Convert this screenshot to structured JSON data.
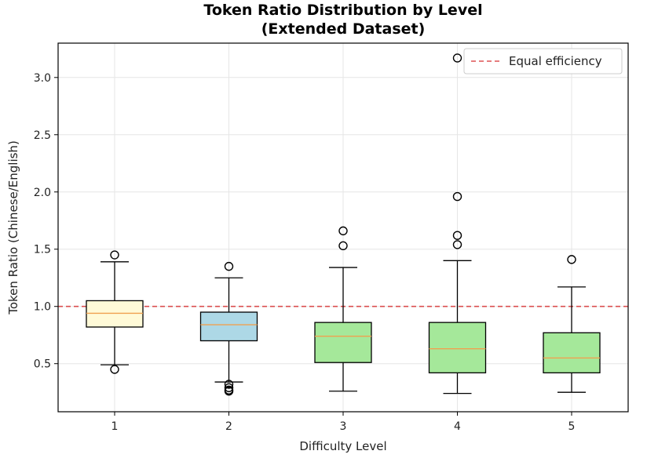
{
  "chart_data": {
    "type": "box",
    "title": "Token Ratio Distribution by Level",
    "subtitle": "(Extended Dataset)",
    "xlabel": "Difficulty Level",
    "ylabel": "Token Ratio (Chinese/English)",
    "categories": [
      "1",
      "2",
      "3",
      "4",
      "5"
    ],
    "ylim": [
      0.08,
      3.3
    ],
    "yticks": [
      0.5,
      1.0,
      1.5,
      2.0,
      2.5,
      3.0
    ],
    "ytick_labels": [
      "0.5",
      "1.0",
      "1.5",
      "2.0",
      "2.5",
      "3.0"
    ],
    "grid": true,
    "reference_line": {
      "value": 1.0,
      "label": "Equal efficiency",
      "color": "#d62728",
      "style": "dashed"
    },
    "legend_position": "top-right",
    "median_color": "#f0a050",
    "boxes": [
      {
        "category": "1",
        "whisker_low": 0.49,
        "q1": 0.82,
        "median": 0.94,
        "q3": 1.05,
        "whisker_high": 1.39,
        "outliers": [
          1.45,
          0.45
        ],
        "fill": "#fffad8"
      },
      {
        "category": "2",
        "whisker_low": 0.34,
        "q1": 0.7,
        "median": 0.84,
        "q3": 0.95,
        "whisker_high": 1.25,
        "outliers": [
          1.35,
          0.32,
          0.29,
          0.27,
          0.26
        ],
        "fill": "#add8e6"
      },
      {
        "category": "3",
        "whisker_low": 0.26,
        "q1": 0.51,
        "median": 0.74,
        "q3": 0.86,
        "whisker_high": 1.34,
        "outliers": [
          1.53,
          1.66
        ],
        "fill": "#a5e89a"
      },
      {
        "category": "4",
        "whisker_low": 0.24,
        "q1": 0.42,
        "median": 0.63,
        "q3": 0.86,
        "whisker_high": 1.4,
        "outliers": [
          1.54,
          1.62,
          1.96,
          3.17
        ],
        "fill": "#a5e89a"
      },
      {
        "category": "5",
        "whisker_low": 0.25,
        "q1": 0.42,
        "median": 0.55,
        "q3": 0.77,
        "whisker_high": 1.17,
        "outliers": [
          1.41
        ],
        "fill": "#a5e89a"
      }
    ]
  }
}
